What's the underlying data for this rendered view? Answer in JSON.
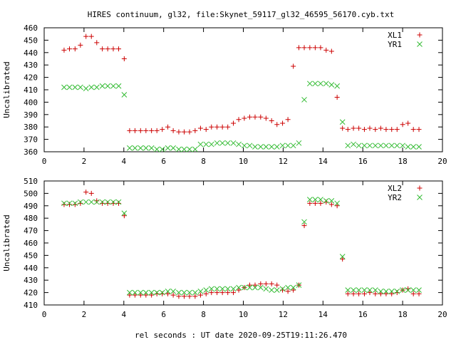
{
  "title": "HIRES continuum, gl32, file:Skynet_59117_gl32_46595_56170.cyb.txt",
  "xlabel": "rel seconds : UT date 2020-09-25T19:11:26.470",
  "chart_data": [
    {
      "type": "scatter",
      "ylabel": "Uncalibrated",
      "xlim": [
        0,
        20
      ],
      "ylim": [
        360,
        460
      ],
      "x_ticks": [
        0,
        2,
        4,
        6,
        8,
        10,
        12,
        14,
        16,
        18,
        20
      ],
      "y_ticks": [
        360,
        370,
        380,
        390,
        400,
        410,
        420,
        430,
        440,
        450,
        460
      ],
      "legend_position": "top-right",
      "series": [
        {
          "name": "XL1",
          "marker": "plus",
          "color": "#cc0000",
          "x": [
            1.0,
            1.27,
            1.55,
            1.82,
            2.1,
            2.37,
            2.64,
            2.92,
            3.19,
            3.47,
            3.74,
            4.02,
            4.29,
            4.56,
            4.84,
            5.11,
            5.39,
            5.66,
            5.93,
            6.21,
            6.48,
            6.76,
            7.03,
            7.3,
            7.58,
            7.85,
            8.13,
            8.4,
            8.68,
            8.95,
            9.22,
            9.5,
            9.77,
            10.05,
            10.32,
            10.59,
            10.87,
            11.14,
            11.42,
            11.69,
            11.97,
            12.24,
            12.51,
            12.79,
            13.06,
            13.34,
            13.61,
            13.88,
            14.16,
            14.43,
            14.71,
            14.98,
            15.25,
            15.53,
            15.8,
            16.08,
            16.35,
            16.63,
            16.9,
            17.17,
            17.45,
            17.72,
            18.0,
            18.27,
            18.54,
            18.82
          ],
          "y": [
            442,
            443,
            443,
            446,
            453,
            453,
            448,
            443,
            443,
            443,
            443,
            435,
            377,
            377,
            377,
            377,
            377,
            377,
            378,
            380,
            377,
            376,
            376,
            376,
            377,
            379,
            378,
            380,
            380,
            380,
            380,
            383,
            386,
            387,
            388,
            388,
            388,
            387,
            385,
            382,
            383,
            386,
            429,
            444,
            444,
            444,
            444,
            444,
            442,
            441,
            404,
            379,
            378,
            379,
            379,
            378,
            379,
            378,
            379,
            378,
            378,
            378,
            382,
            383,
            378,
            378
          ]
        },
        {
          "name": "YR1",
          "marker": "cross",
          "color": "#33bb33",
          "x": [
            1.0,
            1.27,
            1.55,
            1.82,
            2.1,
            2.37,
            2.64,
            2.92,
            3.19,
            3.47,
            3.74,
            4.02,
            4.29,
            4.56,
            4.84,
            5.11,
            5.39,
            5.66,
            5.93,
            6.21,
            6.48,
            6.76,
            7.03,
            7.3,
            7.58,
            7.85,
            8.13,
            8.4,
            8.68,
            8.95,
            9.22,
            9.5,
            9.77,
            10.05,
            10.32,
            10.59,
            10.87,
            11.14,
            11.42,
            11.69,
            11.97,
            12.24,
            12.51,
            12.79,
            13.06,
            13.34,
            13.61,
            13.88,
            14.16,
            14.43,
            14.71,
            14.98,
            15.25,
            15.53,
            15.8,
            16.08,
            16.35,
            16.63,
            16.9,
            17.17,
            17.45,
            17.72,
            18.0,
            18.27,
            18.54,
            18.82
          ],
          "y": [
            412,
            412,
            412,
            412,
            411,
            412,
            412,
            413,
            413,
            413,
            413,
            406,
            363,
            363,
            363,
            363,
            363,
            362,
            362,
            363,
            363,
            362,
            362,
            362,
            362,
            366,
            366,
            366,
            367,
            367,
            367,
            367,
            366,
            365,
            365,
            364,
            364,
            364,
            364,
            364,
            365,
            365,
            365,
            367,
            402,
            415,
            415,
            415,
            415,
            414,
            413,
            384,
            365,
            366,
            365,
            365,
            365,
            365,
            365,
            365,
            365,
            365,
            365,
            364,
            364,
            364
          ]
        }
      ]
    },
    {
      "type": "scatter",
      "ylabel": "Uncalibrated",
      "xlim": [
        0,
        20
      ],
      "ylim": [
        410,
        510
      ],
      "x_ticks": [
        0,
        2,
        4,
        6,
        8,
        10,
        12,
        14,
        16,
        18,
        20
      ],
      "y_ticks": [
        410,
        420,
        430,
        440,
        450,
        460,
        470,
        480,
        490,
        500,
        510
      ],
      "legend_position": "top-right",
      "series": [
        {
          "name": "XL2",
          "marker": "plus",
          "color": "#cc0000",
          "x": [
            1.0,
            1.27,
            1.55,
            1.82,
            2.1,
            2.37,
            2.64,
            2.92,
            3.19,
            3.47,
            3.74,
            4.02,
            4.29,
            4.56,
            4.84,
            5.11,
            5.39,
            5.66,
            5.93,
            6.21,
            6.48,
            6.76,
            7.03,
            7.3,
            7.58,
            7.85,
            8.13,
            8.4,
            8.68,
            8.95,
            9.22,
            9.5,
            9.77,
            10.05,
            10.32,
            10.59,
            10.87,
            11.14,
            11.42,
            11.69,
            11.97,
            12.24,
            12.51,
            12.79,
            13.06,
            13.34,
            13.61,
            13.88,
            14.16,
            14.43,
            14.71,
            14.98,
            15.25,
            15.53,
            15.8,
            16.08,
            16.35,
            16.63,
            16.9,
            17.17,
            17.45,
            17.72,
            18.0,
            18.27,
            18.54,
            18.82
          ],
          "y": [
            491,
            491,
            491,
            492,
            501,
            500,
            494,
            492,
            492,
            492,
            492,
            482,
            418,
            418,
            418,
            418,
            418,
            419,
            419,
            419,
            418,
            417,
            417,
            417,
            417,
            418,
            419,
            420,
            420,
            420,
            420,
            420,
            422,
            424,
            426,
            426,
            427,
            427,
            427,
            426,
            422,
            421,
            422,
            426,
            474,
            492,
            492,
            492,
            493,
            491,
            490,
            447,
            419,
            419,
            419,
            419,
            420,
            419,
            419,
            419,
            419,
            420,
            422,
            423,
            419,
            419
          ]
        },
        {
          "name": "YR2",
          "marker": "cross",
          "color": "#33bb33",
          "x": [
            1.0,
            1.27,
            1.55,
            1.82,
            2.1,
            2.37,
            2.64,
            2.92,
            3.19,
            3.47,
            3.74,
            4.02,
            4.29,
            4.56,
            4.84,
            5.11,
            5.39,
            5.66,
            5.93,
            6.21,
            6.48,
            6.76,
            7.03,
            7.3,
            7.58,
            7.85,
            8.13,
            8.4,
            8.68,
            8.95,
            9.22,
            9.5,
            9.77,
            10.05,
            10.32,
            10.59,
            10.87,
            11.14,
            11.42,
            11.69,
            11.97,
            12.24,
            12.51,
            12.79,
            13.06,
            13.34,
            13.61,
            13.88,
            14.16,
            14.43,
            14.71,
            14.98,
            15.25,
            15.53,
            15.8,
            16.08,
            16.35,
            16.63,
            16.9,
            17.17,
            17.45,
            17.72,
            18.0,
            18.27,
            18.54,
            18.82
          ],
          "y": [
            492,
            492,
            492,
            493,
            493,
            493,
            493,
            493,
            493,
            493,
            493,
            484,
            420,
            420,
            420,
            420,
            420,
            420,
            420,
            421,
            421,
            420,
            420,
            420,
            420,
            421,
            422,
            423,
            423,
            423,
            423,
            423,
            424,
            424,
            424,
            424,
            424,
            423,
            422,
            422,
            423,
            424,
            424,
            426,
            477,
            495,
            495,
            495,
            494,
            494,
            492,
            449,
            422,
            422,
            422,
            422,
            422,
            422,
            421,
            421,
            421,
            421,
            422,
            422,
            422,
            422
          ]
        }
      ]
    }
  ]
}
